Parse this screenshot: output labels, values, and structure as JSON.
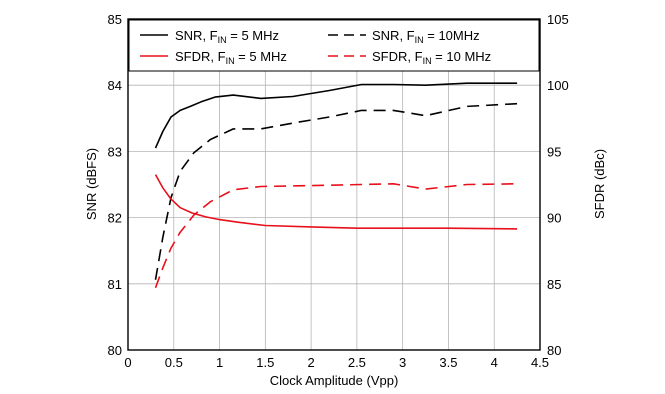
{
  "chart_data": {
    "type": "line",
    "xlabel": "Clock Amplitude (Vpp)",
    "ylabel_left": "SNR (dBFS)",
    "ylabel_right": "SFDR (dBc)",
    "xlim": [
      0,
      4.5
    ],
    "ylim_left": [
      80,
      85
    ],
    "ylim_right": [
      80,
      105
    ],
    "xticks": [
      "0",
      "0.5",
      "1",
      "1.5",
      "2",
      "2.5",
      "3",
      "3.5",
      "4",
      "4.5"
    ],
    "yticks_left": [
      "80",
      "81",
      "82",
      "83",
      "84",
      "85"
    ],
    "yticks_right": [
      "80",
      "85",
      "90",
      "95",
      "100",
      "105"
    ],
    "grid": true,
    "legend_position": "top",
    "series": [
      {
        "name_main": "SNR, F",
        "name_sub": "IN",
        "name_rest": " = 5 MHz",
        "axis": "left",
        "color": "#000000",
        "dash": "solid",
        "x": [
          0.3,
          0.38,
          0.47,
          0.57,
          0.68,
          0.8,
          0.95,
          1.15,
          1.45,
          1.8,
          2.2,
          2.55,
          2.9,
          3.25,
          3.7,
          4.25
        ],
        "y": [
          83.05,
          83.3,
          83.52,
          83.62,
          83.68,
          83.75,
          83.82,
          83.85,
          83.8,
          83.83,
          83.92,
          84.01,
          84.01,
          84.0,
          84.03,
          84.03
        ]
      },
      {
        "name_main": "SNR, F",
        "name_sub": "IN",
        "name_rest": " = 10MHz",
        "axis": "right",
        "color": "#000000",
        "dash": "dashed",
        "x": [
          0.3,
          0.38,
          0.47,
          0.57,
          0.72,
          0.9,
          1.15,
          1.45,
          1.85,
          2.2,
          2.55,
          2.9,
          3.25,
          3.7,
          4.25
        ],
        "y": [
          85.3,
          88.5,
          91.5,
          93.5,
          94.9,
          95.9,
          96.7,
          96.7,
          97.2,
          97.6,
          98.1,
          98.1,
          97.7,
          98.4,
          98.6
        ]
      },
      {
        "name_main": "SFDR, F",
        "name_sub": "IN",
        "name_rest": " = 5 MHz",
        "axis": "left",
        "color": "#e8101a",
        "dash": "solid",
        "x": [
          0.3,
          0.38,
          0.47,
          0.57,
          0.7,
          0.85,
          1.0,
          1.2,
          1.5,
          2.0,
          2.5,
          3.0,
          3.5,
          4.25
        ],
        "y": [
          82.65,
          82.45,
          82.28,
          82.15,
          82.07,
          82.01,
          81.97,
          81.93,
          81.88,
          81.86,
          81.84,
          81.84,
          81.84,
          81.83
        ]
      },
      {
        "name_main": "SFDR, F",
        "name_sub": "IN",
        "name_rest": " = 10 MHz",
        "axis": "right",
        "color": "#e8101a",
        "dash": "dashed",
        "x": [
          0.3,
          0.38,
          0.47,
          0.57,
          0.72,
          0.9,
          1.15,
          1.45,
          1.85,
          2.2,
          2.55,
          2.9,
          3.25,
          3.7,
          4.25
        ],
        "y": [
          84.7,
          86.2,
          87.7,
          88.9,
          90.2,
          91.2,
          92.1,
          92.35,
          92.4,
          92.45,
          92.5,
          92.55,
          92.15,
          92.5,
          92.55
        ]
      }
    ]
  }
}
